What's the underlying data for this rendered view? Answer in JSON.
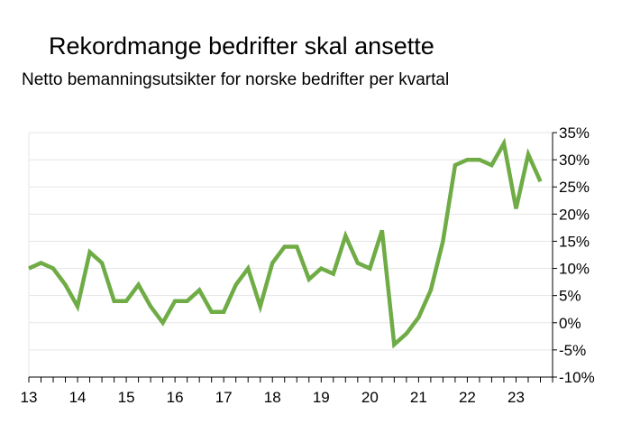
{
  "chart_data": {
    "type": "line",
    "title": "Rekordmange bedrifter skal ansette",
    "subtitle": "Netto bemanningsutsikter for norske bedrifter per kvartal",
    "xlabel": "",
    "ylabel": "",
    "x_start_year": 13,
    "x_tick_labels": [
      "13",
      "14",
      "15",
      "16",
      "17",
      "18",
      "19",
      "20",
      "21",
      "22",
      "23"
    ],
    "y_tick_labels": [
      "35%",
      "30%",
      "25%",
      "20%",
      "15%",
      "10%",
      "5%",
      "0%",
      "-5%",
      "-10%"
    ],
    "ylim": [
      -10,
      35
    ],
    "y_ticks": [
      35,
      30,
      25,
      20,
      15,
      10,
      5,
      0,
      -5,
      -10
    ],
    "grid": true,
    "series": [
      {
        "name": "",
        "color": "#6fac46",
        "values": [
          10,
          11,
          10,
          7,
          3,
          13,
          11,
          4,
          4,
          7,
          3,
          0,
          4,
          4,
          6,
          2,
          2,
          7,
          10,
          3,
          11,
          14,
          14,
          8,
          10,
          9,
          16,
          11,
          10,
          17,
          -4,
          -2,
          1,
          6,
          15,
          29,
          30,
          30,
          29,
          33,
          21,
          31,
          26
        ]
      }
    ]
  }
}
